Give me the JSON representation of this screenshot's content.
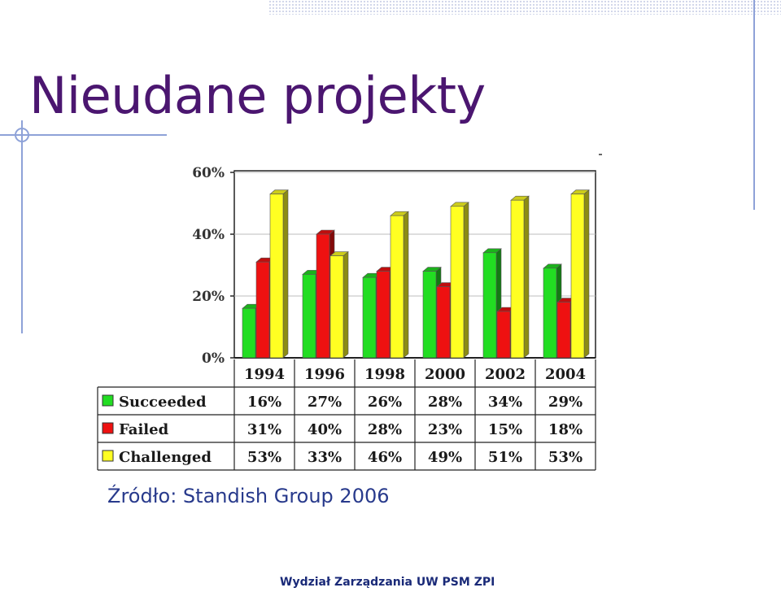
{
  "slide": {
    "title": "Nieudane projekty",
    "source": "Źródło: Standish Group 2006",
    "footer": "Wydział Zarządzania UW PSM ZPI"
  },
  "colors": {
    "title": "#4b1670",
    "accent_lines": "#8ea2d8",
    "source_text": "#283a8c"
  },
  "chart_data": {
    "type": "bar",
    "categories": [
      "1994",
      "1996",
      "1998",
      "2000",
      "2002",
      "2004"
    ],
    "series": [
      {
        "name": "Succeeded",
        "values": [
          16,
          27,
          26,
          28,
          34,
          29
        ],
        "labels": [
          "16%",
          "27%",
          "26%",
          "28%",
          "34%",
          "29%"
        ],
        "color": "#22dd22"
      },
      {
        "name": "Failed",
        "values": [
          31,
          40,
          28,
          23,
          15,
          18
        ],
        "labels": [
          "31%",
          "40%",
          "28%",
          "23%",
          "15%",
          "18%"
        ],
        "color": "#ee1111"
      },
      {
        "name": "Challenged",
        "values": [
          53,
          33,
          46,
          49,
          51,
          53
        ],
        "labels": [
          "53%",
          "33%",
          "46%",
          "49%",
          "51%",
          "53%"
        ],
        "color": "#ffff22"
      }
    ],
    "yticks": [
      "0%",
      "20%",
      "40%",
      "60%"
    ],
    "ylim": [
      0,
      60
    ],
    "grid": true,
    "legend": "data-table"
  }
}
